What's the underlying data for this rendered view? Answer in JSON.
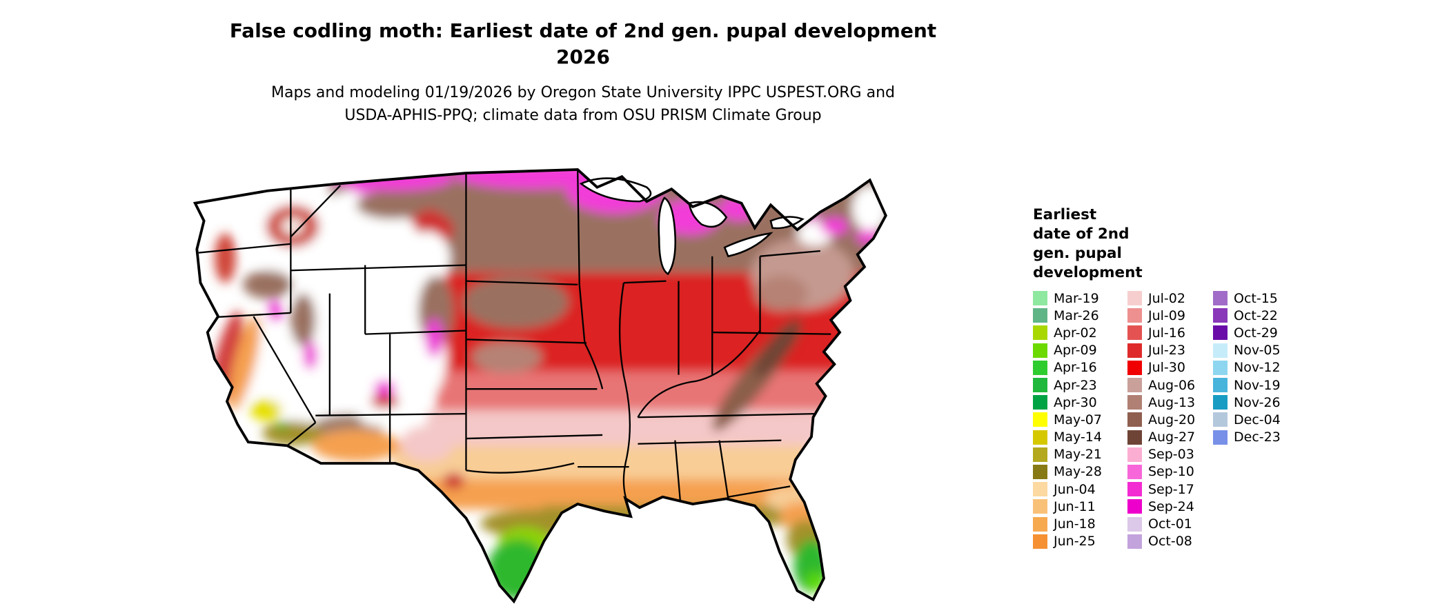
{
  "header": {
    "title_line1": "False codling moth: Earliest date of 2nd gen. pupal development",
    "title_line2": "2026",
    "subtitle_line1": "Maps and modeling 01/19/2026 by Oregon State University IPPC USPEST.ORG and",
    "subtitle_line2": "USDA-APHIS-PPQ; climate data from OSU PRISM Climate Group"
  },
  "legend": {
    "title_lines": [
      "Earliest",
      "date of 2nd",
      "gen. pupal",
      "development"
    ],
    "columns": [
      [
        {
          "label": "Mar-19",
          "color": "#8FE8A0"
        },
        {
          "label": "Mar-26",
          "color": "#5FB586"
        },
        {
          "label": "Apr-02",
          "color": "#A8D800"
        },
        {
          "label": "Apr-09",
          "color": "#6CD900"
        },
        {
          "label": "Apr-16",
          "color": "#2ECC2E"
        },
        {
          "label": "Apr-23",
          "color": "#1FB83C"
        },
        {
          "label": "Apr-30",
          "color": "#00A344"
        },
        {
          "label": "May-07",
          "color": "#FFFF00"
        },
        {
          "label": "May-14",
          "color": "#D6C800"
        },
        {
          "label": "May-21",
          "color": "#B3A81E"
        },
        {
          "label": "May-28",
          "color": "#877A14"
        },
        {
          "label": "Jun-04",
          "color": "#FBD9A0"
        },
        {
          "label": "Jun-11",
          "color": "#F9C178"
        },
        {
          "label": "Jun-18",
          "color": "#F7A950"
        },
        {
          "label": "Jun-25",
          "color": "#F59133"
        }
      ],
      [
        {
          "label": "Jul-02",
          "color": "#F6CECE"
        },
        {
          "label": "Jul-09",
          "color": "#EE9090"
        },
        {
          "label": "Jul-16",
          "color": "#E45252"
        },
        {
          "label": "Jul-23",
          "color": "#DE2A2A"
        },
        {
          "label": "Jul-30",
          "color": "#F00000"
        },
        {
          "label": "Aug-06",
          "color": "#C9A09A"
        },
        {
          "label": "Aug-13",
          "color": "#B08074"
        },
        {
          "label": "Aug-20",
          "color": "#8F5F4F"
        },
        {
          "label": "Aug-27",
          "color": "#6E4436"
        },
        {
          "label": "Sep-03",
          "color": "#FBAED2"
        },
        {
          "label": "Sep-10",
          "color": "#F767D9"
        },
        {
          "label": "Sep-17",
          "color": "#F32BD3"
        },
        {
          "label": "Sep-24",
          "color": "#EE00CC"
        },
        {
          "label": "Oct-01",
          "color": "#DCC8E8"
        },
        {
          "label": "Oct-08",
          "color": "#C3A3DC"
        }
      ],
      [
        {
          "label": "Oct-15",
          "color": "#A06CC8"
        },
        {
          "label": "Oct-22",
          "color": "#8838B8"
        },
        {
          "label": "Oct-29",
          "color": "#6A0DA8"
        },
        {
          "label": "Nov-05",
          "color": "#C6ECFA"
        },
        {
          "label": "Nov-12",
          "color": "#8ED6F0"
        },
        {
          "label": "Nov-19",
          "color": "#48B4DC"
        },
        {
          "label": "Nov-26",
          "color": "#189CC4"
        },
        {
          "label": "Dec-04",
          "color": "#B4C8DC"
        },
        {
          "label": "Dec-23",
          "color": "#7890E8"
        }
      ]
    ]
  }
}
